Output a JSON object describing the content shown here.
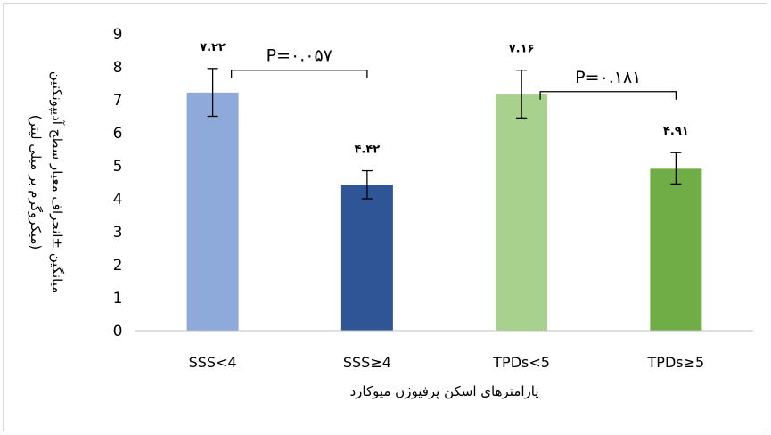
{
  "chart_data": {
    "type": "bar",
    "categories": [
      "SSS<4",
      "SSS≥4",
      "TPDs<5",
      "TPDs≥5"
    ],
    "values": [
      7.22,
      4.42,
      7.16,
      4.91
    ],
    "data_labels": [
      "۷.۲۲",
      "۴.۴۲",
      "۷.۱۶",
      "۴.۹۱"
    ],
    "error_low": [
      6.5,
      4.0,
      6.45,
      4.45
    ],
    "error_high": [
      7.95,
      4.85,
      7.9,
      5.4
    ],
    "colors": [
      "#8eaadb",
      "#2f5597",
      "#a9d18e",
      "#70ad47"
    ],
    "ylim": [
      0,
      9
    ],
    "yticks": [
      0,
      1,
      2,
      3,
      4,
      5,
      6,
      7,
      8,
      9
    ],
    "ytick_labels": [
      "0",
      "1",
      "2",
      "3",
      "4",
      "5",
      "6",
      "7",
      "8",
      "9"
    ],
    "xlabel": "پارامترهای اسکن پرفیوژن میوکارد",
    "ylabel_line1": "میانگین ±انحراف معیار سطح آدیپونکتین",
    "ylabel_line2": "(میکروگرم بر میلی لیتر)",
    "comparisons": [
      {
        "from": 0,
        "to": 1,
        "level": 7.9,
        "label": "P=۰.۰۵۷"
      },
      {
        "from": 2,
        "to": 3,
        "level": 7.25,
        "label": "P=۰.۱۸۱"
      }
    ],
    "grid": false,
    "legend": "none"
  }
}
